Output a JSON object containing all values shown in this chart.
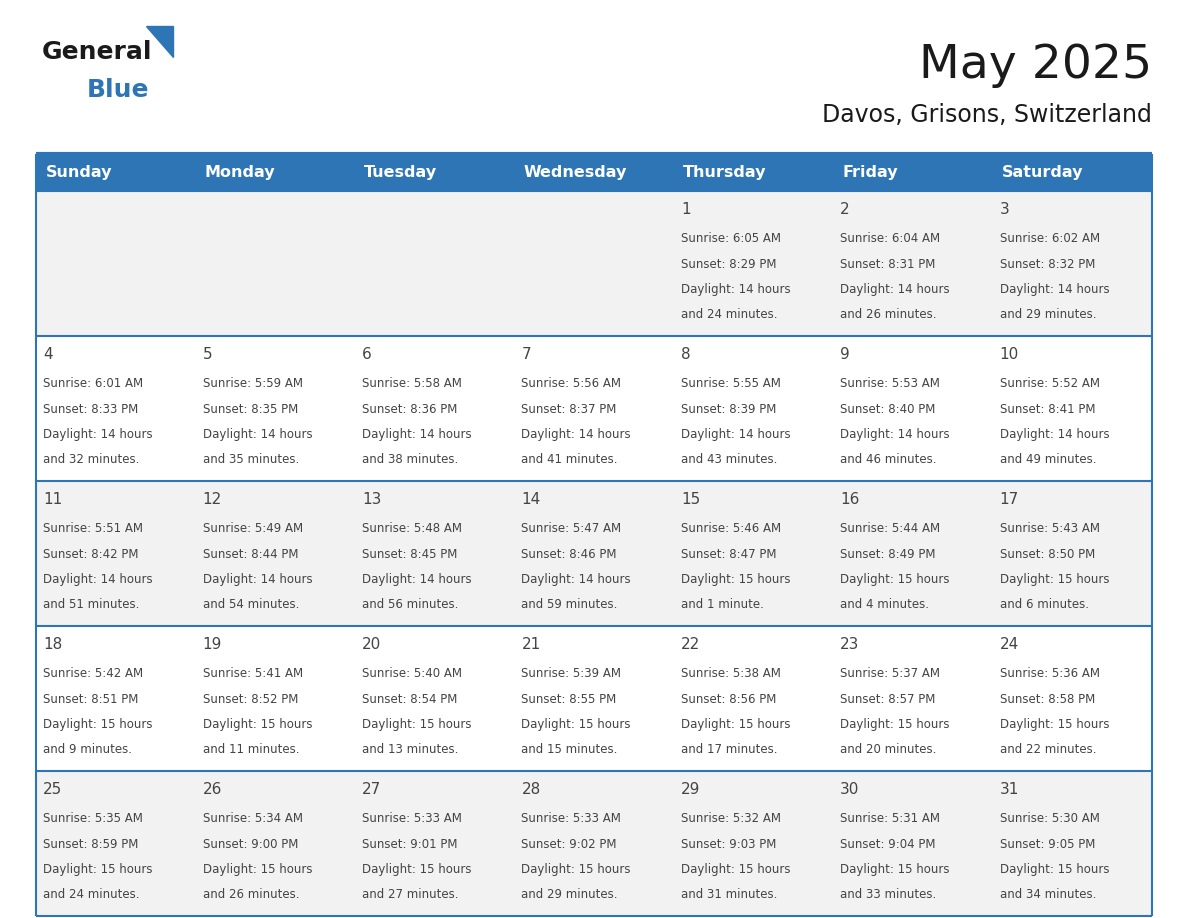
{
  "title": "May 2025",
  "subtitle": "Davos, Grisons, Switzerland",
  "header_bg": "#2E75B6",
  "header_text_color": "#FFFFFF",
  "day_names": [
    "Sunday",
    "Monday",
    "Tuesday",
    "Wednesday",
    "Thursday",
    "Friday",
    "Saturday"
  ],
  "background_color": "#FFFFFF",
  "cell_bg_odd": "#F2F2F2",
  "cell_bg_even": "#FFFFFF",
  "separator_color": "#2E75B6",
  "text_color": "#444444",
  "logo_general_color": "#1a1a1a",
  "logo_blue_color": "#2E75B6",
  "logo_triangle_color": "#2E75B6",
  "days": [
    {
      "day": 1,
      "col": 4,
      "row": 0,
      "sunrise": "6:05 AM",
      "sunset": "8:29 PM",
      "daylight": "14 hours and 24 minutes."
    },
    {
      "day": 2,
      "col": 5,
      "row": 0,
      "sunrise": "6:04 AM",
      "sunset": "8:31 PM",
      "daylight": "14 hours and 26 minutes."
    },
    {
      "day": 3,
      "col": 6,
      "row": 0,
      "sunrise": "6:02 AM",
      "sunset": "8:32 PM",
      "daylight": "14 hours and 29 minutes."
    },
    {
      "day": 4,
      "col": 0,
      "row": 1,
      "sunrise": "6:01 AM",
      "sunset": "8:33 PM",
      "daylight": "14 hours and 32 minutes."
    },
    {
      "day": 5,
      "col": 1,
      "row": 1,
      "sunrise": "5:59 AM",
      "sunset": "8:35 PM",
      "daylight": "14 hours and 35 minutes."
    },
    {
      "day": 6,
      "col": 2,
      "row": 1,
      "sunrise": "5:58 AM",
      "sunset": "8:36 PM",
      "daylight": "14 hours and 38 minutes."
    },
    {
      "day": 7,
      "col": 3,
      "row": 1,
      "sunrise": "5:56 AM",
      "sunset": "8:37 PM",
      "daylight": "14 hours and 41 minutes."
    },
    {
      "day": 8,
      "col": 4,
      "row": 1,
      "sunrise": "5:55 AM",
      "sunset": "8:39 PM",
      "daylight": "14 hours and 43 minutes."
    },
    {
      "day": 9,
      "col": 5,
      "row": 1,
      "sunrise": "5:53 AM",
      "sunset": "8:40 PM",
      "daylight": "14 hours and 46 minutes."
    },
    {
      "day": 10,
      "col": 6,
      "row": 1,
      "sunrise": "5:52 AM",
      "sunset": "8:41 PM",
      "daylight": "14 hours and 49 minutes."
    },
    {
      "day": 11,
      "col": 0,
      "row": 2,
      "sunrise": "5:51 AM",
      "sunset": "8:42 PM",
      "daylight": "14 hours and 51 minutes."
    },
    {
      "day": 12,
      "col": 1,
      "row": 2,
      "sunrise": "5:49 AM",
      "sunset": "8:44 PM",
      "daylight": "14 hours and 54 minutes."
    },
    {
      "day": 13,
      "col": 2,
      "row": 2,
      "sunrise": "5:48 AM",
      "sunset": "8:45 PM",
      "daylight": "14 hours and 56 minutes."
    },
    {
      "day": 14,
      "col": 3,
      "row": 2,
      "sunrise": "5:47 AM",
      "sunset": "8:46 PM",
      "daylight": "14 hours and 59 minutes."
    },
    {
      "day": 15,
      "col": 4,
      "row": 2,
      "sunrise": "5:46 AM",
      "sunset": "8:47 PM",
      "daylight": "15 hours and 1 minute."
    },
    {
      "day": 16,
      "col": 5,
      "row": 2,
      "sunrise": "5:44 AM",
      "sunset": "8:49 PM",
      "daylight": "15 hours and 4 minutes."
    },
    {
      "day": 17,
      "col": 6,
      "row": 2,
      "sunrise": "5:43 AM",
      "sunset": "8:50 PM",
      "daylight": "15 hours and 6 minutes."
    },
    {
      "day": 18,
      "col": 0,
      "row": 3,
      "sunrise": "5:42 AM",
      "sunset": "8:51 PM",
      "daylight": "15 hours and 9 minutes."
    },
    {
      "day": 19,
      "col": 1,
      "row": 3,
      "sunrise": "5:41 AM",
      "sunset": "8:52 PM",
      "daylight": "15 hours and 11 minutes."
    },
    {
      "day": 20,
      "col": 2,
      "row": 3,
      "sunrise": "5:40 AM",
      "sunset": "8:54 PM",
      "daylight": "15 hours and 13 minutes."
    },
    {
      "day": 21,
      "col": 3,
      "row": 3,
      "sunrise": "5:39 AM",
      "sunset": "8:55 PM",
      "daylight": "15 hours and 15 minutes."
    },
    {
      "day": 22,
      "col": 4,
      "row": 3,
      "sunrise": "5:38 AM",
      "sunset": "8:56 PM",
      "daylight": "15 hours and 17 minutes."
    },
    {
      "day": 23,
      "col": 5,
      "row": 3,
      "sunrise": "5:37 AM",
      "sunset": "8:57 PM",
      "daylight": "15 hours and 20 minutes."
    },
    {
      "day": 24,
      "col": 6,
      "row": 3,
      "sunrise": "5:36 AM",
      "sunset": "8:58 PM",
      "daylight": "15 hours and 22 minutes."
    },
    {
      "day": 25,
      "col": 0,
      "row": 4,
      "sunrise": "5:35 AM",
      "sunset": "8:59 PM",
      "daylight": "15 hours and 24 minutes."
    },
    {
      "day": 26,
      "col": 1,
      "row": 4,
      "sunrise": "5:34 AM",
      "sunset": "9:00 PM",
      "daylight": "15 hours and 26 minutes."
    },
    {
      "day": 27,
      "col": 2,
      "row": 4,
      "sunrise": "5:33 AM",
      "sunset": "9:01 PM",
      "daylight": "15 hours and 27 minutes."
    },
    {
      "day": 28,
      "col": 3,
      "row": 4,
      "sunrise": "5:33 AM",
      "sunset": "9:02 PM",
      "daylight": "15 hours and 29 minutes."
    },
    {
      "day": 29,
      "col": 4,
      "row": 4,
      "sunrise": "5:32 AM",
      "sunset": "9:03 PM",
      "daylight": "15 hours and 31 minutes."
    },
    {
      "day": 30,
      "col": 5,
      "row": 4,
      "sunrise": "5:31 AM",
      "sunset": "9:04 PM",
      "daylight": "15 hours and 33 minutes."
    },
    {
      "day": 31,
      "col": 6,
      "row": 4,
      "sunrise": "5:30 AM",
      "sunset": "9:05 PM",
      "daylight": "15 hours and 34 minutes."
    }
  ]
}
